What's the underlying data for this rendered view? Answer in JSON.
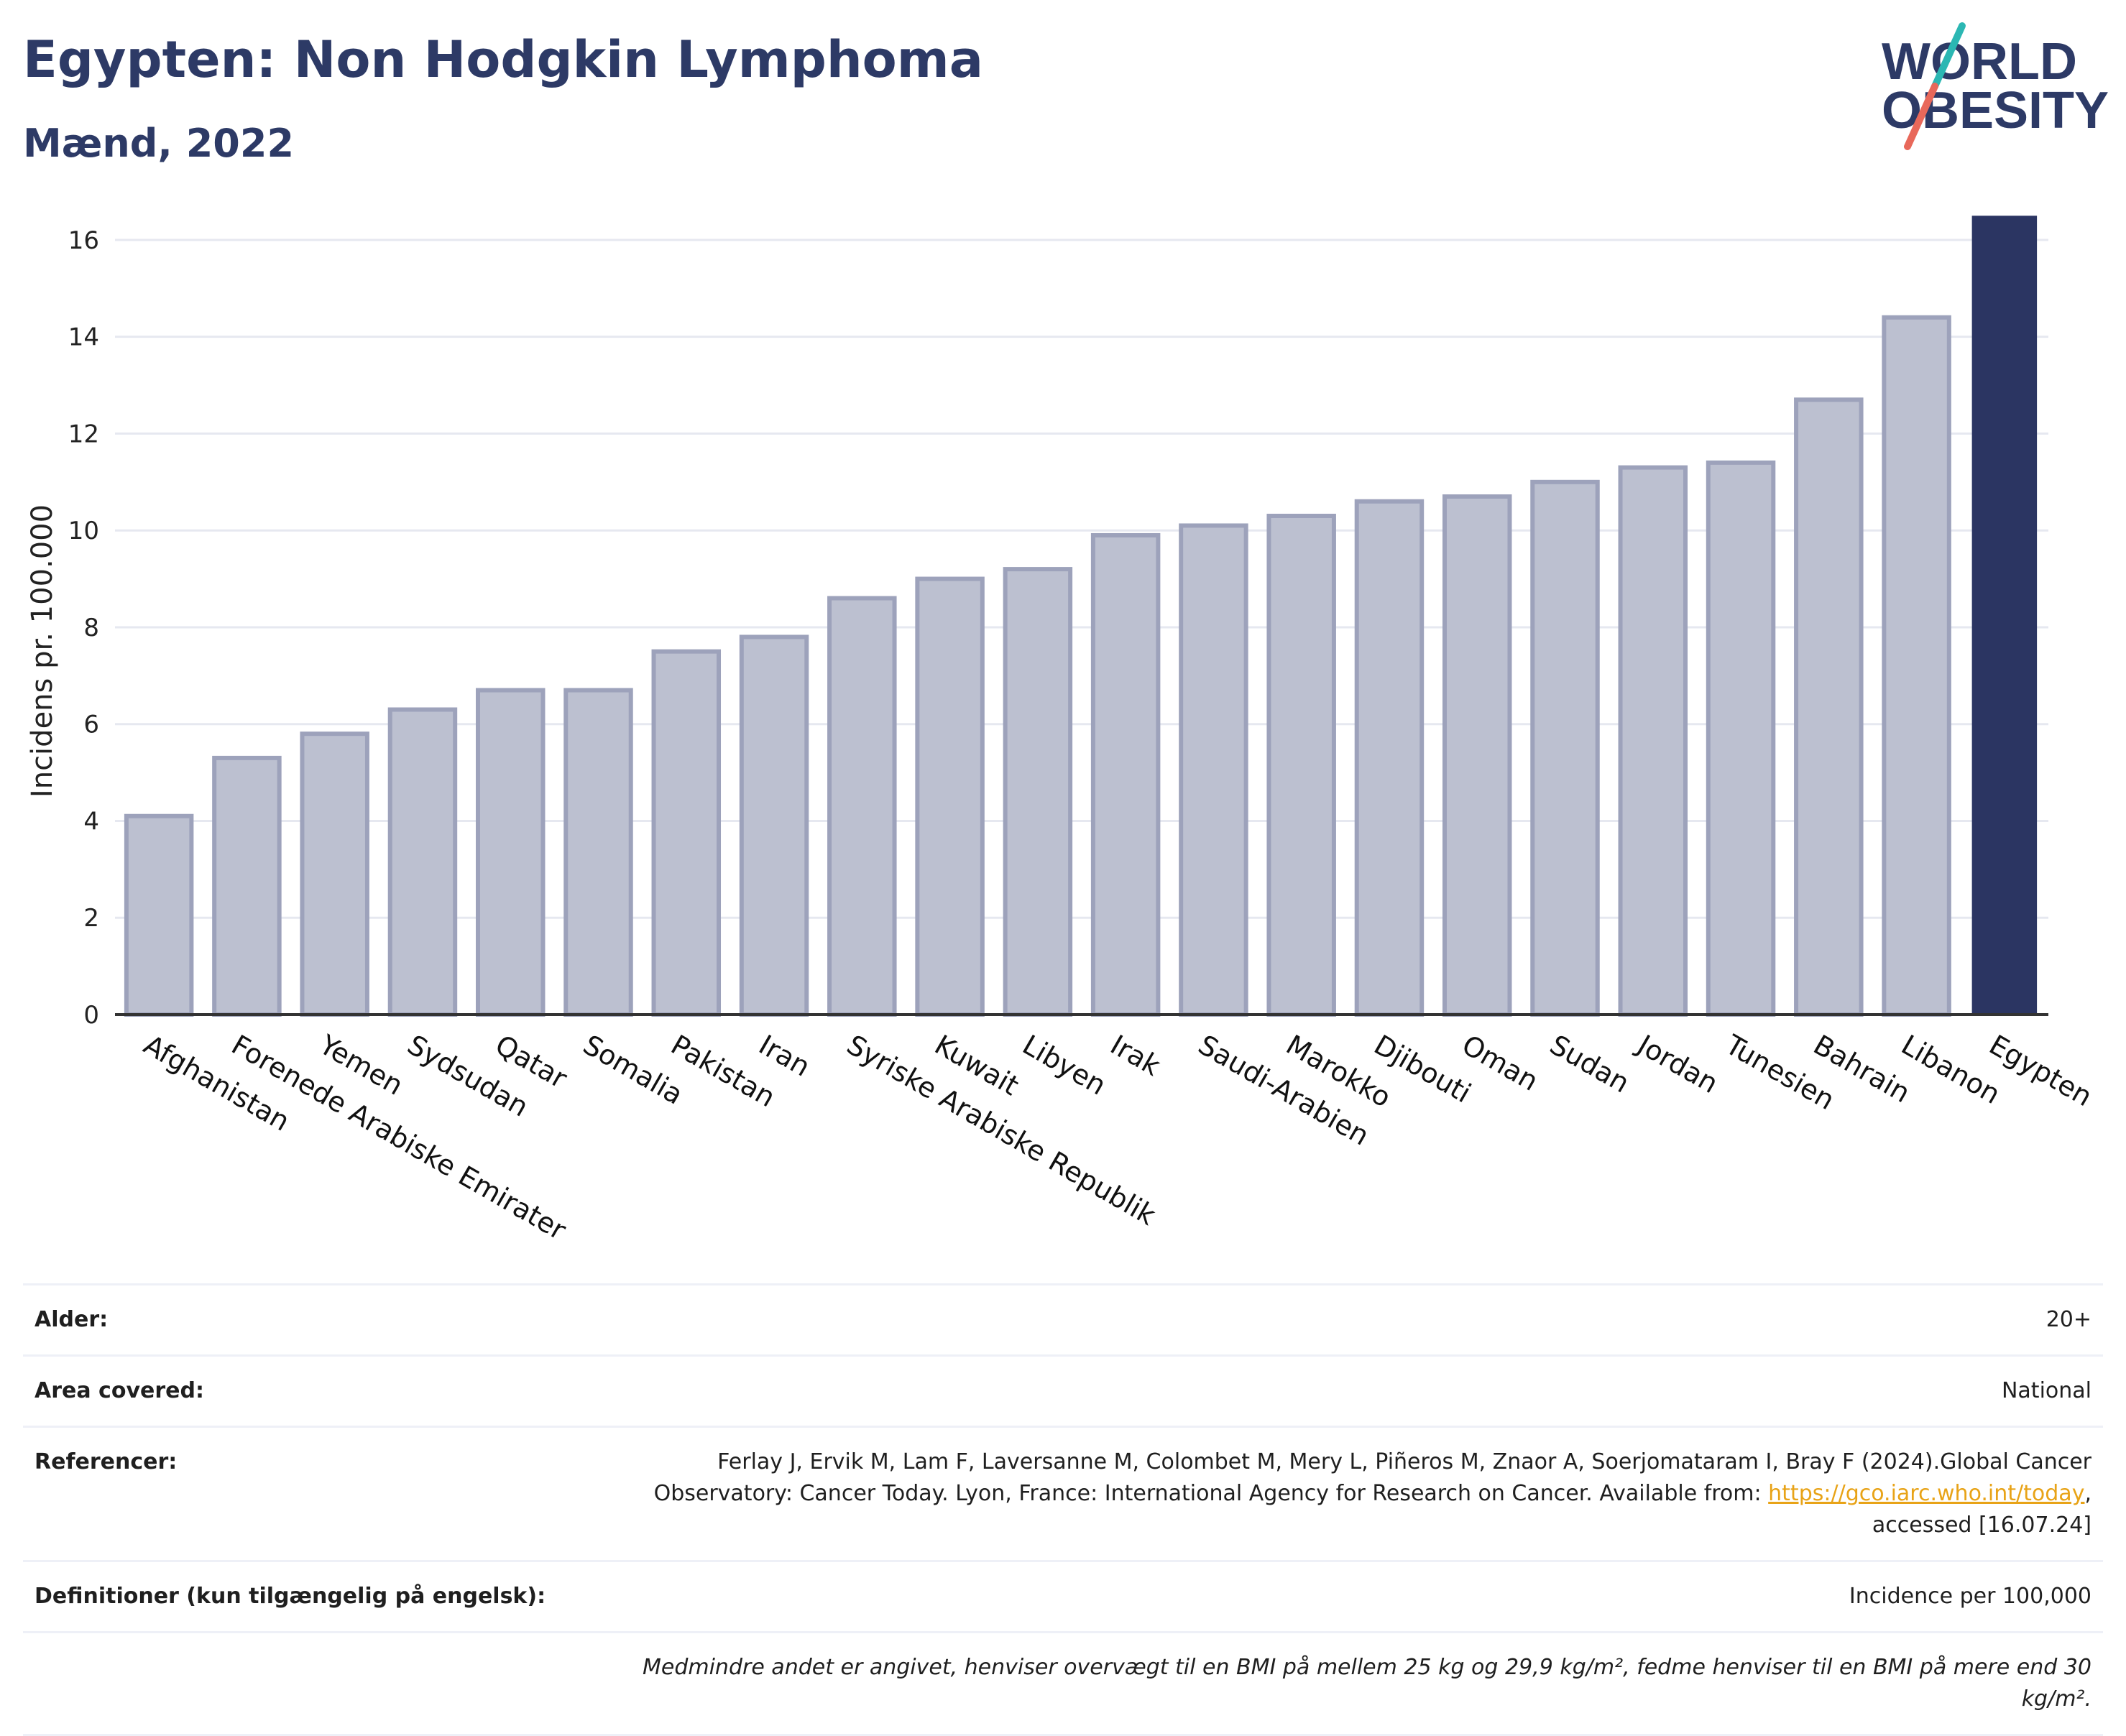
{
  "header": {
    "title": "Egypten: Non Hodgkin Lymphoma",
    "subtitle": "Mænd, 2022"
  },
  "logo": {
    "line1": "WORLD",
    "line2": "OBESITY",
    "colors": {
      "text": "#2d3a66",
      "slash_teal": "#2bb7b3",
      "slash_coral": "#e8685a"
    }
  },
  "chart_data": {
    "type": "bar",
    "ylabel": "Incidens pr. 100.000",
    "xlabel": "",
    "ylim": [
      0,
      16.8
    ],
    "yticks": [
      0,
      2,
      4,
      6,
      8,
      10,
      12,
      14,
      16
    ],
    "grid": true,
    "highlight": "Egypten",
    "categories": [
      "Afghanistan",
      "Forenede Arabiske Emirater",
      "Yemen",
      "Sydsudan",
      "Qatar",
      "Somalia",
      "Pakistan",
      "Iran",
      "Syriske Arabiske Republik",
      "Kuwait",
      "Libyen",
      "Irak",
      "Saudi-Arabien",
      "Marokko",
      "Djibouti",
      "Oman",
      "Sudan",
      "Jordan",
      "Tunesien",
      "Bahrain",
      "Libanon",
      "Egypten"
    ],
    "values": [
      4.1,
      5.3,
      5.8,
      6.3,
      6.7,
      6.7,
      7.5,
      7.8,
      8.6,
      9.0,
      9.2,
      9.9,
      10.1,
      10.3,
      10.6,
      10.7,
      11.0,
      11.3,
      11.4,
      12.7,
      14.4,
      16.5
    ],
    "colors": {
      "bar": "#bcc0d0",
      "bar_edge": "#9da2bb",
      "highlight": "#2b3562",
      "grid": "#e6e8f0",
      "axis": "#333333"
    }
  },
  "meta": {
    "rows": [
      {
        "label": "Alder:",
        "value": "20+"
      },
      {
        "label": "Area covered:",
        "value": "National"
      },
      {
        "label": "Referencer:",
        "value_pre": "Ferlay J, Ervik M, Lam F, Laversanne M, Colombet M, Mery L, Piñeros M, Znaor A, Soerjomataram I, Bray F (2024).Global Cancer Observatory: Cancer Today. Lyon, France: International Agency for Research on Cancer. Available from: ",
        "link": "https://gco.iarc.who.int/today",
        "value_post": ", accessed [16.07.24]"
      },
      {
        "label": "Definitioner (kun tilgængelig på engelsk):",
        "value": "Incidence per 100,000"
      }
    ],
    "note": "Medmindre andet er angivet, henviser overvægt til en BMI på mellem 25 kg og 29,9 kg/m², fedme henviser til en BMI på mere end 30 kg/m²."
  }
}
